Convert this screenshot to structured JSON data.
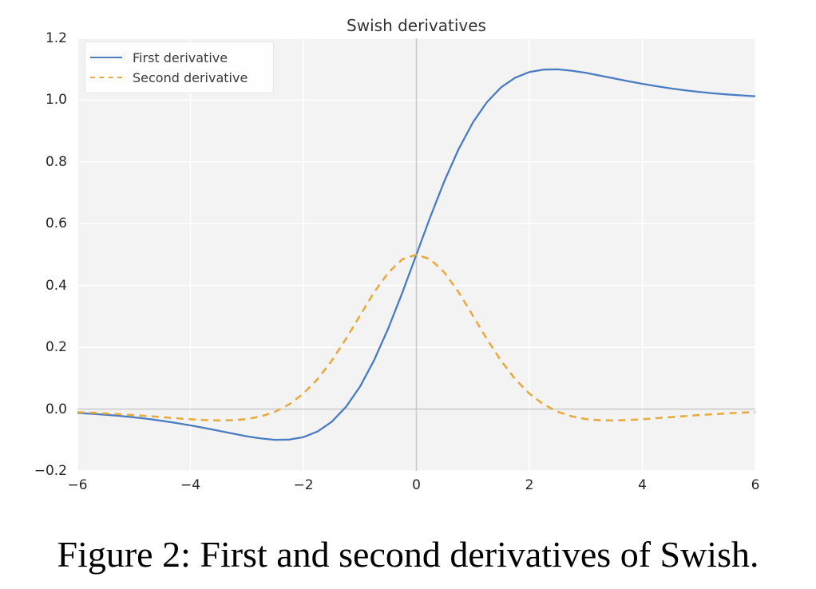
{
  "figure": {
    "caption": "Figure 2: First and second derivatives of Swish."
  },
  "colors": {
    "page_bg": "#ffffff",
    "plot_background": "#f3f3f4",
    "grid": "#ffffff",
    "zero_line": "#cbcbcb",
    "axis_text": "#262626",
    "title_text": "#333333",
    "legend_bg": "rgba(255,255,255,0.85)",
    "legend_border": "#e7e7e7",
    "caption_text": "#000000"
  },
  "chart_data": {
    "type": "line",
    "title": "Swish derivatives",
    "xlabel": "",
    "ylabel": "",
    "xlim": [
      -6,
      6
    ],
    "ylim": [
      -0.2,
      1.2
    ],
    "grid": true,
    "legend_position": "upper left",
    "zero_lines": {
      "h": 0,
      "v": 0
    },
    "x_ticks": [
      {
        "v": -6,
        "label": "−6"
      },
      {
        "v": -4,
        "label": "−4"
      },
      {
        "v": -2,
        "label": "−2"
      },
      {
        "v": 0,
        "label": "0"
      },
      {
        "v": 2,
        "label": "2"
      },
      {
        "v": 4,
        "label": "4"
      },
      {
        "v": 6,
        "label": "6"
      }
    ],
    "y_ticks": [
      {
        "v": -0.2,
        "label": "−0.2"
      },
      {
        "v": 0,
        "label": "0.0"
      },
      {
        "v": 0.2,
        "label": "0.2"
      },
      {
        "v": 0.4,
        "label": "0.4"
      },
      {
        "v": 0.6,
        "label": "0.6"
      },
      {
        "v": 0.8,
        "label": "0.8"
      },
      {
        "v": 1,
        "label": "1.0"
      },
      {
        "v": 1.2,
        "label": "1.2"
      }
    ],
    "x": [
      -6,
      -5.75,
      -5.5,
      -5.25,
      -5,
      -4.75,
      -4.5,
      -4.25,
      -4,
      -3.75,
      -3.5,
      -3.25,
      -3,
      -2.75,
      -2.5,
      -2.25,
      -2,
      -1.75,
      -1.5,
      -1.25,
      -1,
      -0.75,
      -0.5,
      -0.25,
      0,
      0.25,
      0.5,
      0.75,
      1,
      1.25,
      1.5,
      1.75,
      2,
      2.25,
      2.5,
      2.75,
      3,
      3.25,
      3.5,
      3.75,
      4,
      4.25,
      4.5,
      4.75,
      5,
      5.25,
      5.5,
      5.75,
      6
    ],
    "series": [
      {
        "id": "first-derivative",
        "name": "First derivative",
        "color": "#4a7cc2",
        "style": "solid",
        "values": [
          -0.0125,
          -0.0152,
          -0.0184,
          -0.022,
          -0.0266,
          -0.0319,
          -0.038,
          -0.045,
          -0.0527,
          -0.0613,
          -0.0702,
          -0.0794,
          -0.0881,
          -0.0952,
          -0.0995,
          -0.0987,
          -0.0908,
          -0.0727,
          -0.0413,
          0.0063,
          0.0723,
          0.1574,
          0.26,
          0.3763,
          0.5,
          0.6237,
          0.74,
          0.8426,
          0.9277,
          0.9937,
          1.0413,
          1.0727,
          1.0908,
          1.0987,
          1.0995,
          1.0952,
          1.0881,
          1.0794,
          1.0702,
          1.0613,
          1.0527,
          1.045,
          1.038,
          1.0319,
          1.0266,
          1.022,
          1.0184,
          1.0152,
          1.0125
        ]
      },
      {
        "id": "second-derivative",
        "name": "Second derivative",
        "color": "#e7ab3f",
        "style": "dashed",
        "values": [
          -0.0099,
          -0.0118,
          -0.0141,
          -0.0165,
          -0.0195,
          -0.0228,
          -0.0261,
          -0.0296,
          -0.0328,
          -0.0354,
          -0.0368,
          -0.0362,
          -0.0323,
          -0.0237,
          -0.0085,
          0.0154,
          0.0501,
          0.0968,
          0.1562,
          0.2262,
          0.3023,
          0.3772,
          0.4412,
          0.4846,
          0.5,
          0.4846,
          0.4412,
          0.3772,
          0.3023,
          0.2262,
          0.1562,
          0.0968,
          0.0501,
          0.0154,
          -0.0085,
          -0.0237,
          -0.0323,
          -0.0362,
          -0.0368,
          -0.0354,
          -0.0328,
          -0.0296,
          -0.0261,
          -0.0228,
          -0.0195,
          -0.0165,
          -0.0141,
          -0.0118,
          -0.0099
        ]
      }
    ]
  }
}
